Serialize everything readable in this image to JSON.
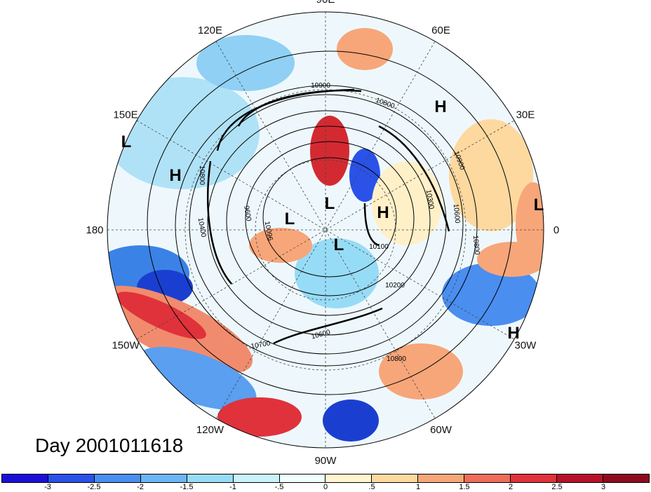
{
  "title": "Day 2001011618",
  "longitude_labels": [
    {
      "text": "90E",
      "lon": 90
    },
    {
      "text": "60E",
      "lon": 60
    },
    {
      "text": "30E",
      "lon": 30
    },
    {
      "text": "0",
      "lon": 0
    },
    {
      "text": "30W",
      "lon": -30
    },
    {
      "text": "60W",
      "lon": -60
    },
    {
      "text": "90W",
      "lon": -90
    },
    {
      "text": "120W",
      "lon": -120
    },
    {
      "text": "150W",
      "lon": -150
    },
    {
      "text": "180",
      "lon": 180
    },
    {
      "text": "150E",
      "lon": 150
    },
    {
      "text": "120E",
      "lon": 120
    }
  ],
  "pressure_centers": [
    "H",
    "L",
    "H",
    "L",
    "L",
    "L",
    "H",
    "L",
    "H"
  ],
  "contour_labels": [
    "10900",
    "10800",
    "10900",
    "10300",
    "10600",
    "10800",
    "10096",
    "9600",
    "10400",
    "10100",
    "10200",
    "10800",
    "10800",
    "10700",
    "10600"
  ],
  "colorbar": {
    "ticks": [
      "-3",
      "-2.5",
      "-2",
      "-1.5",
      "-1",
      "-.5",
      "0",
      ".5",
      "1",
      "1.5",
      "2",
      "2.5",
      "3"
    ],
    "colors": [
      "#1a0fd8",
      "#2a52e8",
      "#4a8ef0",
      "#6cb6f4",
      "#97dcf6",
      "#c9f2fb",
      "#f0feff",
      "#fff6cf",
      "#fdd9a0",
      "#f7a67a",
      "#ef6c5a",
      "#e0323b",
      "#b8112a",
      "#8e0a1f"
    ]
  }
}
